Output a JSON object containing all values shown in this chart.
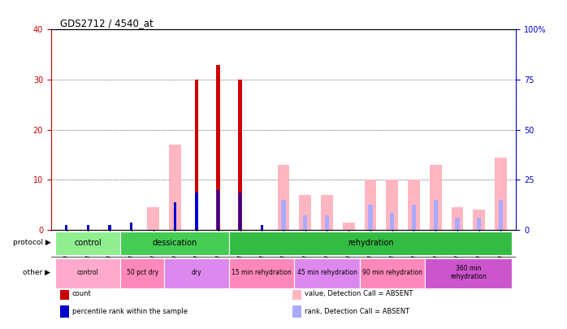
{
  "title": "GDS2712 / 4540_at",
  "samples": [
    "GSM21640",
    "GSM21641",
    "GSM21642",
    "GSM21643",
    "GSM21644",
    "GSM21645",
    "GSM21646",
    "GSM21647",
    "GSM21648",
    "GSM21649",
    "GSM21650",
    "GSM21651",
    "GSM21652",
    "GSM21653",
    "GSM21654",
    "GSM21655",
    "GSM21656",
    "GSM21657",
    "GSM21658",
    "GSM21659",
    "GSM21660"
  ],
  "count_values": [
    0,
    0,
    0,
    0,
    0,
    0,
    30,
    33,
    30,
    0,
    0,
    0,
    0,
    0,
    0,
    0,
    0,
    0,
    0,
    0,
    0
  ],
  "rank_values": [
    1,
    1,
    1,
    1.5,
    0,
    5.5,
    7.5,
    8,
    7.5,
    1,
    0,
    0,
    0,
    0,
    0,
    0,
    0,
    0,
    0,
    0,
    0
  ],
  "value_absent": [
    0,
    0,
    0,
    0,
    4.5,
    17,
    0,
    0,
    0,
    0,
    13,
    7,
    7,
    1.5,
    10,
    10,
    10,
    13,
    4.5,
    4,
    14.5
  ],
  "rank_absent": [
    0,
    0,
    0,
    0,
    0,
    0,
    0,
    0,
    0,
    0,
    6,
    3,
    3,
    0,
    5,
    3.5,
    5,
    6,
    2.5,
    2.5,
    6
  ],
  "ylim_left": [
    0,
    40
  ],
  "ylim_right": [
    0,
    100
  ],
  "yticks_left": [
    0,
    10,
    20,
    30,
    40
  ],
  "yticks_right": [
    0,
    25,
    50,
    75,
    100
  ],
  "ytick_labels_right": [
    "0",
    "25",
    "50",
    "75",
    "100%"
  ],
  "protocol_groups": [
    {
      "label": "control",
      "start": 0,
      "end": 3,
      "color": "#90EE90"
    },
    {
      "label": "dessication",
      "start": 3,
      "end": 8,
      "color": "#44CC55"
    },
    {
      "label": "rehydration",
      "start": 8,
      "end": 21,
      "color": "#33BB44"
    }
  ],
  "other_groups": [
    {
      "label": "control",
      "start": 0,
      "end": 3,
      "color": "#FFAACC"
    },
    {
      "label": "50 pct dry",
      "start": 3,
      "end": 5,
      "color": "#FF88BB"
    },
    {
      "label": "dry",
      "start": 5,
      "end": 8,
      "color": "#DD88EE"
    },
    {
      "label": "15 min rehydration",
      "start": 8,
      "end": 11,
      "color": "#FF88BB"
    },
    {
      "label": "45 min rehydration",
      "start": 11,
      "end": 14,
      "color": "#DD88EE"
    },
    {
      "label": "90 min rehydration",
      "start": 14,
      "end": 17,
      "color": "#FF88BB"
    },
    {
      "label": "360 min\nrehydration",
      "start": 17,
      "end": 21,
      "color": "#CC55CC"
    }
  ],
  "count_color": "#CC0000",
  "rank_color": "#0000CC",
  "value_absent_color": "#FFB6C1",
  "rank_absent_color": "#AAAAFF",
  "background_color": "#FFFFFF",
  "left_axis_color": "#CC0000",
  "right_axis_color": "#0000CC"
}
